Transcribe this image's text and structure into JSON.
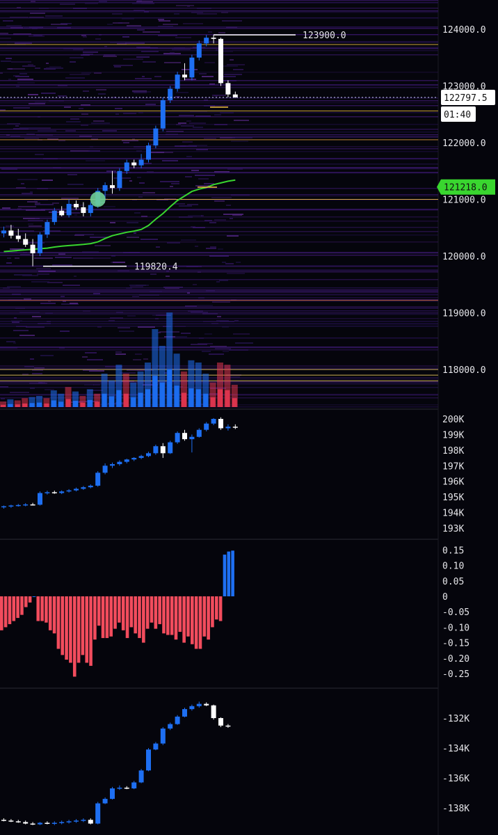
{
  "chart_data": [
    {
      "type": "candlestick",
      "panel": "price",
      "y_ticks": [
        "124000.0",
        "123000.0",
        "122000.0",
        "121000.0",
        "120000.0",
        "119000.0",
        "118000.0"
      ],
      "ylim": [
        117300,
        124400
      ],
      "candles": [
        {
          "o": 120400,
          "h": 120520,
          "l": 120330,
          "c": 120450
        },
        {
          "o": 120450,
          "h": 120550,
          "l": 120310,
          "c": 120360
        },
        {
          "o": 120360,
          "h": 120480,
          "l": 120250,
          "c": 120300
        },
        {
          "o": 120300,
          "h": 120400,
          "l": 120160,
          "c": 120200
        },
        {
          "o": 120200,
          "h": 120300,
          "l": 119820,
          "c": 120050
        },
        {
          "o": 120050,
          "h": 120420,
          "l": 120000,
          "c": 120380
        },
        {
          "o": 120380,
          "h": 120640,
          "l": 120320,
          "c": 120600
        },
        {
          "o": 120600,
          "h": 120850,
          "l": 120550,
          "c": 120800
        },
        {
          "o": 120800,
          "h": 120880,
          "l": 120700,
          "c": 120720
        },
        {
          "o": 120720,
          "h": 121000,
          "l": 120680,
          "c": 120920
        },
        {
          "o": 120920,
          "h": 120980,
          "l": 120820,
          "c": 120860
        },
        {
          "o": 120860,
          "h": 120950,
          "l": 120700,
          "c": 120760
        },
        {
          "o": 120760,
          "h": 120950,
          "l": 120700,
          "c": 120900
        },
        {
          "o": 120900,
          "h": 121200,
          "l": 120850,
          "c": 121150
        },
        {
          "o": 121150,
          "h": 121300,
          "l": 121000,
          "c": 121250
        },
        {
          "o": 121250,
          "h": 121500,
          "l": 121100,
          "c": 121200
        },
        {
          "o": 121200,
          "h": 121550,
          "l": 121150,
          "c": 121500
        },
        {
          "o": 121500,
          "h": 121700,
          "l": 121450,
          "c": 121650
        },
        {
          "o": 121650,
          "h": 121700,
          "l": 121550,
          "c": 121600
        },
        {
          "o": 121600,
          "h": 121800,
          "l": 121550,
          "c": 121700
        },
        {
          "o": 121700,
          "h": 122000,
          "l": 121650,
          "c": 121950
        },
        {
          "o": 121950,
          "h": 122300,
          "l": 121900,
          "c": 122250
        },
        {
          "o": 122250,
          "h": 122800,
          "l": 122200,
          "c": 122750
        },
        {
          "o": 122750,
          "h": 123000,
          "l": 122700,
          "c": 122950
        },
        {
          "o": 122950,
          "h": 123250,
          "l": 122900,
          "c": 123200
        },
        {
          "o": 123200,
          "h": 123400,
          "l": 123100,
          "c": 123150
        },
        {
          "o": 123150,
          "h": 123550,
          "l": 123100,
          "c": 123500
        },
        {
          "o": 123500,
          "h": 123800,
          "l": 123450,
          "c": 123750
        },
        {
          "o": 123750,
          "h": 123900,
          "l": 123700,
          "c": 123850
        },
        {
          "o": 123850,
          "h": 123900,
          "l": 123750,
          "c": 123830
        },
        {
          "o": 123830,
          "h": 123850,
          "l": 123000,
          "c": 123050
        },
        {
          "o": 123050,
          "h": 123100,
          "l": 122800,
          "c": 122850
        },
        {
          "o": 122850,
          "h": 122900,
          "l": 122790,
          "c": 122800
        }
      ],
      "moving_average": [
        120080,
        120090,
        120100,
        120110,
        120120,
        120130,
        120140,
        120160,
        120175,
        120185,
        120195,
        120205,
        120220,
        120250,
        120310,
        120360,
        120390,
        120420,
        120440,
        120470,
        120540,
        120650,
        120750,
        120870,
        120980,
        121060,
        121140,
        121180,
        121210,
        121260,
        121290,
        121320,
        121340
      ],
      "volume": [
        {
          "v": 0.05,
          "up": false
        },
        {
          "v": 0.07,
          "up": true
        },
        {
          "v": 0.06,
          "up": false
        },
        {
          "v": 0.08,
          "up": false
        },
        {
          "v": 0.09,
          "up": true
        },
        {
          "v": 0.1,
          "up": true
        },
        {
          "v": 0.08,
          "up": false
        },
        {
          "v": 0.15,
          "up": true
        },
        {
          "v": 0.12,
          "up": true
        },
        {
          "v": 0.18,
          "up": false
        },
        {
          "v": 0.14,
          "up": true
        },
        {
          "v": 0.1,
          "up": false
        },
        {
          "v": 0.16,
          "up": true
        },
        {
          "v": 0.12,
          "up": false
        },
        {
          "v": 0.3,
          "up": true
        },
        {
          "v": 0.24,
          "up": true
        },
        {
          "v": 0.38,
          "up": true
        },
        {
          "v": 0.3,
          "up": false
        },
        {
          "v": 0.22,
          "up": true
        },
        {
          "v": 0.32,
          "up": true
        },
        {
          "v": 0.4,
          "up": true
        },
        {
          "v": 0.7,
          "up": true
        },
        {
          "v": 0.55,
          "up": true
        },
        {
          "v": 0.85,
          "up": true
        },
        {
          "v": 0.48,
          "up": true
        },
        {
          "v": 0.32,
          "up": false
        },
        {
          "v": 0.42,
          "up": true
        },
        {
          "v": 0.4,
          "up": true
        },
        {
          "v": 0.3,
          "up": true
        },
        {
          "v": 0.22,
          "up": false
        },
        {
          "v": 0.4,
          "up": false
        },
        {
          "v": 0.38,
          "up": false
        },
        {
          "v": 0.2,
          "up": false
        }
      ],
      "annotations": {
        "high_label": "123900.0",
        "low_label": "119820.4",
        "high_value": 123900,
        "low_value": 119820.4
      },
      "current_price": {
        "value": 122797.5,
        "label": "122797.5",
        "countdown": "01:40",
        "tag_color": "#ffffff"
      },
      "ma_label": {
        "value": 121218.0,
        "label": "121218.0",
        "color": "#39d62f"
      },
      "marker": {
        "candle_index": 13,
        "value": 121000,
        "color": "#6fcf97"
      },
      "horizontal_levels": [
        {
          "value": 123730,
          "color": "#f0c040"
        },
        {
          "value": 122560,
          "color": "#f0c040"
        },
        {
          "value": 122050,
          "color": "#e09a3a"
        },
        {
          "value": 121000,
          "color": "#f0c040"
        },
        {
          "value": 119220,
          "color": "#d06a3a"
        },
        {
          "value": 118000,
          "color": "#f0d060"
        },
        {
          "value": 117900,
          "color": "#f0d060"
        },
        {
          "value": 117800,
          "color": "#f0d060"
        }
      ],
      "colors": {
        "up": "#1e6ff2",
        "down": "#ffffff",
        "ma": "#39d62f",
        "vol_up": "#1e6ff2",
        "vol_down": "#e0364f"
      }
    },
    {
      "type": "candlestick",
      "panel": "indicator-1",
      "y_ticks": [
        "200K",
        "199K",
        "198K",
        "197K",
        "196K",
        "195K",
        "194K",
        "193K"
      ],
      "ylim": [
        192700,
        200400
      ],
      "candles": [
        {
          "o": 194350,
          "h": 194450,
          "l": 194250,
          "c": 194400
        },
        {
          "o": 194400,
          "h": 194500,
          "l": 194300,
          "c": 194450
        },
        {
          "o": 194450,
          "h": 194550,
          "l": 194380,
          "c": 194480
        },
        {
          "o": 194480,
          "h": 194600,
          "l": 194400,
          "c": 194520
        },
        {
          "o": 194520,
          "h": 194620,
          "l": 194450,
          "c": 194500
        },
        {
          "o": 194500,
          "h": 195350,
          "l": 194450,
          "c": 195250
        },
        {
          "o": 195250,
          "h": 195400,
          "l": 195150,
          "c": 195300
        },
        {
          "o": 195300,
          "h": 195400,
          "l": 195200,
          "c": 195250
        },
        {
          "o": 195250,
          "h": 195420,
          "l": 195180,
          "c": 195350
        },
        {
          "o": 195350,
          "h": 195500,
          "l": 195280,
          "c": 195420
        },
        {
          "o": 195420,
          "h": 195600,
          "l": 195350,
          "c": 195520
        },
        {
          "o": 195520,
          "h": 195700,
          "l": 195450,
          "c": 195620
        },
        {
          "o": 195620,
          "h": 195800,
          "l": 195550,
          "c": 195720
        },
        {
          "o": 195720,
          "h": 196650,
          "l": 195650,
          "c": 196550
        },
        {
          "o": 196550,
          "h": 197150,
          "l": 196450,
          "c": 197000
        },
        {
          "o": 197000,
          "h": 197200,
          "l": 196850,
          "c": 197100
        },
        {
          "o": 197100,
          "h": 197350,
          "l": 197000,
          "c": 197250
        },
        {
          "o": 197250,
          "h": 197450,
          "l": 197150,
          "c": 197400
        },
        {
          "o": 197400,
          "h": 197550,
          "l": 197300,
          "c": 197500
        },
        {
          "o": 197500,
          "h": 197700,
          "l": 197420,
          "c": 197620
        },
        {
          "o": 197620,
          "h": 197900,
          "l": 197550,
          "c": 197800
        },
        {
          "o": 197800,
          "h": 198350,
          "l": 197700,
          "c": 198250
        },
        {
          "o": 198250,
          "h": 198450,
          "l": 197500,
          "c": 197800
        },
        {
          "o": 197800,
          "h": 198600,
          "l": 197750,
          "c": 198500
        },
        {
          "o": 198500,
          "h": 199200,
          "l": 198400,
          "c": 199100
        },
        {
          "o": 199100,
          "h": 199300,
          "l": 198600,
          "c": 198700
        },
        {
          "o": 198700,
          "h": 199000,
          "l": 197850,
          "c": 198850
        },
        {
          "o": 198850,
          "h": 199400,
          "l": 198800,
          "c": 199300
        },
        {
          "o": 199300,
          "h": 199800,
          "l": 199200,
          "c": 199700
        },
        {
          "o": 199700,
          "h": 200050,
          "l": 199600,
          "c": 200000
        },
        {
          "o": 200000,
          "h": 200100,
          "l": 199300,
          "c": 199400
        },
        {
          "o": 199400,
          "h": 199650,
          "l": 199250,
          "c": 199500
        },
        {
          "o": 199500,
          "h": 199650,
          "l": 199350,
          "c": 199450
        }
      ],
      "colors": {
        "up": "#1e6ff2",
        "down": "#ffffff"
      }
    },
    {
      "type": "bar",
      "panel": "indicator-2",
      "y_ticks": [
        "0.15",
        "0.10",
        "0.05",
        "0",
        "-0.05",
        "-0.10",
        "-0.15",
        "-0.20",
        "-0.25"
      ],
      "ylim": [
        -0.285,
        0.175
      ],
      "values": [
        -0.11,
        -0.1,
        -0.09,
        -0.08,
        -0.07,
        -0.06,
        -0.035,
        -0.02,
        -0.0,
        -0.08,
        -0.08,
        -0.085,
        -0.11,
        -0.12,
        -0.17,
        -0.19,
        -0.205,
        -0.215,
        -0.26,
        -0.215,
        -0.19,
        -0.215,
        -0.225,
        -0.14,
        -0.095,
        -0.135,
        -0.135,
        -0.13,
        -0.105,
        -0.085,
        -0.11,
        -0.135,
        -0.1,
        -0.12,
        -0.135,
        -0.15,
        -0.105,
        -0.085,
        -0.105,
        -0.09,
        -0.12,
        -0.125,
        -0.125,
        -0.14,
        -0.115,
        -0.15,
        -0.13,
        -0.155,
        -0.17,
        -0.17,
        -0.13,
        -0.14,
        -0.1,
        -0.075,
        -0.08,
        0.135,
        0.145,
        0.148
      ],
      "colors": {
        "positive": "#1e6ff2",
        "negative": "#f24c5d"
      }
    },
    {
      "type": "candlestick",
      "panel": "indicator-3",
      "y_ticks": [
        "-132K",
        "-134K",
        "-136K",
        "-138K"
      ],
      "ylim": [
        -139500,
        -130500
      ],
      "candles": [
        {
          "o": -138800,
          "h": -138700,
          "l": -138900,
          "c": -138850
        },
        {
          "o": -138850,
          "h": -138750,
          "l": -138950,
          "c": -138900
        },
        {
          "o": -138900,
          "h": -138800,
          "l": -139000,
          "c": -138950
        },
        {
          "o": -138950,
          "h": -138850,
          "l": -139100,
          "c": -139050
        },
        {
          "o": -139050,
          "h": -138950,
          "l": -139150,
          "c": -139100
        },
        {
          "o": -139100,
          "h": -138950,
          "l": -139150,
          "c": -139000
        },
        {
          "o": -139000,
          "h": -138900,
          "l": -139100,
          "c": -139050
        },
        {
          "o": -139050,
          "h": -138900,
          "l": -139150,
          "c": -139000
        },
        {
          "o": -139000,
          "h": -138850,
          "l": -139100,
          "c": -138950
        },
        {
          "o": -138950,
          "h": -138800,
          "l": -139050,
          "c": -138900
        },
        {
          "o": -138900,
          "h": -138750,
          "l": -139000,
          "c": -138850
        },
        {
          "o": -138850,
          "h": -138700,
          "l": -138950,
          "c": -138800
        },
        {
          "o": -138800,
          "h": -138700,
          "l": -139100,
          "c": -139050
        },
        {
          "o": -139050,
          "h": -137600,
          "l": -139100,
          "c": -137700
        },
        {
          "o": -137700,
          "h": -137300,
          "l": -137750,
          "c": -137400
        },
        {
          "o": -137400,
          "h": -136600,
          "l": -137450,
          "c": -136700
        },
        {
          "o": -136700,
          "h": -136500,
          "l": -136800,
          "c": -136650
        },
        {
          "o": -136650,
          "h": -136550,
          "l": -136750,
          "c": -136700
        },
        {
          "o": -136700,
          "h": -136200,
          "l": -136750,
          "c": -136300
        },
        {
          "o": -136300,
          "h": -135400,
          "l": -136350,
          "c": -135500
        },
        {
          "o": -135500,
          "h": -134000,
          "l": -135550,
          "c": -134100
        },
        {
          "o": -134100,
          "h": -133600,
          "l": -134150,
          "c": -133700
        },
        {
          "o": -133700,
          "h": -132600,
          "l": -133800,
          "c": -132700
        },
        {
          "o": -132700,
          "h": -132300,
          "l": -132800,
          "c": -132400
        },
        {
          "o": -132400,
          "h": -131800,
          "l": -132450,
          "c": -131900
        },
        {
          "o": -131900,
          "h": -131300,
          "l": -131950,
          "c": -131400
        },
        {
          "o": -131400,
          "h": -131100,
          "l": -131500,
          "c": -131200
        },
        {
          "o": -131200,
          "h": -130900,
          "l": -131300,
          "c": -131050
        },
        {
          "o": -131050,
          "h": -130950,
          "l": -131200,
          "c": -131150
        },
        {
          "o": -131150,
          "h": -131100,
          "l": -132100,
          "c": -132000
        },
        {
          "o": -132000,
          "h": -131950,
          "l": -132600,
          "c": -132500
        },
        {
          "o": -132500,
          "h": -132400,
          "l": -132650,
          "c": -132550
        }
      ],
      "colors": {
        "up": "#1e6ff2",
        "down": "#ffffff"
      }
    }
  ]
}
